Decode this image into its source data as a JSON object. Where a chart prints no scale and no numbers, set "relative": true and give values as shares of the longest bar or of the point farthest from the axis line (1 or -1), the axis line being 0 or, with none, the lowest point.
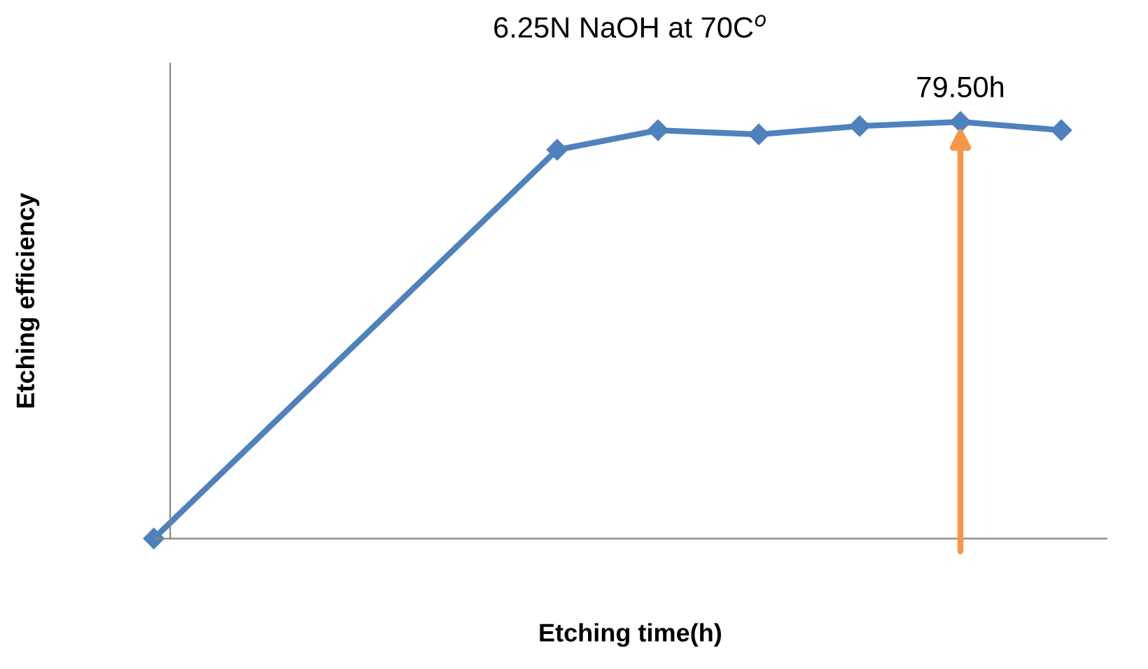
{
  "chart_data": {
    "type": "line",
    "title": "6.25N NaOH at 70C$^{o}$",
    "xlabel": "Etching time(h)",
    "ylabel": "Etching efficiency",
    "relative": true,
    "marker": "diamond",
    "line_style": "solid",
    "categories": [
      null,
      null,
      null,
      null,
      null,
      null,
      null,
      null,
      null,
      null
    ],
    "series": [
      {
        "color": "#4f81bd",
        "values": [
          0,
          null,
          null,
          null,
          0.933,
          0.98,
          0.97,
          0.99,
          1,
          0.98
        ]
      }
    ],
    "annotations": [
      "79.50h"
    ]
  }
}
